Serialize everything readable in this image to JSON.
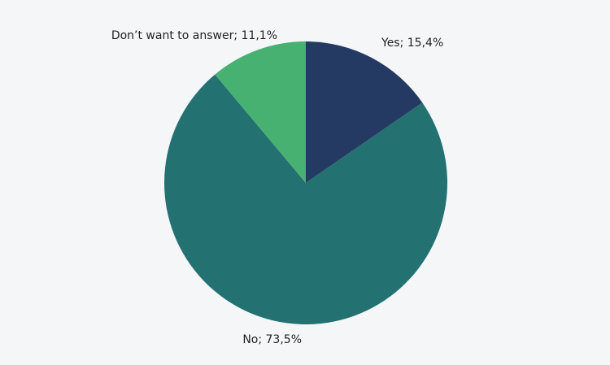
{
  "chart_data": {
    "type": "pie",
    "values": [
      15.4,
      73.5,
      11.1
    ],
    "value_labels": [
      "Yes; 15,4%",
      "No; 73,5%",
      "Don’t want to answer; 11,1%"
    ],
    "colors": [
      "#253a63",
      "#237171",
      "#47b171"
    ]
  }
}
